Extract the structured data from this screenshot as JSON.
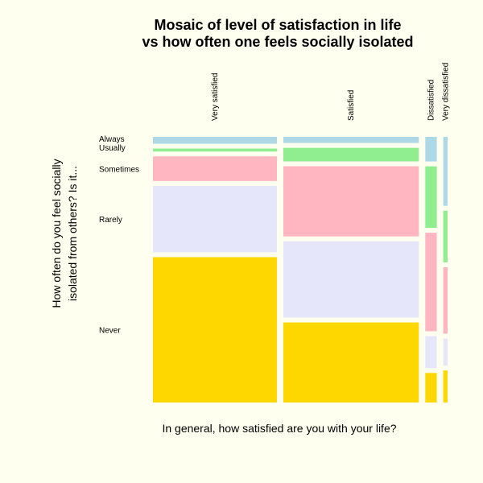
{
  "chart_data": {
    "type": "mosaic",
    "title_lines": [
      "Mosaic of level of satisfaction in life",
      "vs how often one feels socially isolated"
    ],
    "xlabel": "In general, how satisfied are you with your life?",
    "ylabel_lines": [
      "How often do you feel socially",
      "isolated from others?  Is it..."
    ],
    "columns": [
      {
        "label": "Very satisfied",
        "share": 0.43,
        "values": [
          0.028,
          0.012,
          0.1,
          0.27,
          0.59
        ]
      },
      {
        "label": "Satisfied",
        "share": 0.47,
        "values": [
          0.025,
          0.055,
          0.285,
          0.31,
          0.325
        ]
      },
      {
        "label": "Dissatisfied",
        "share": 0.04,
        "values": [
          0.1,
          0.25,
          0.4,
          0.13,
          0.12
        ]
      },
      {
        "label": "Very dissatisfied",
        "share": 0.015,
        "values": [
          0.28,
          0.21,
          0.27,
          0.11,
          0.13
        ]
      }
    ],
    "rows": [
      {
        "label": "Always",
        "color": "#add8e6"
      },
      {
        "label": "Usually",
        "color": "#90ee90"
      },
      {
        "label": "Sometimes",
        "color": "#ffb6c1"
      },
      {
        "label": "Rarely",
        "color": "#e6e6fa"
      },
      {
        "label": "Never",
        "color": "#ffd700"
      }
    ],
    "background": "#fffff0",
    "grid": false,
    "legend": "none"
  }
}
